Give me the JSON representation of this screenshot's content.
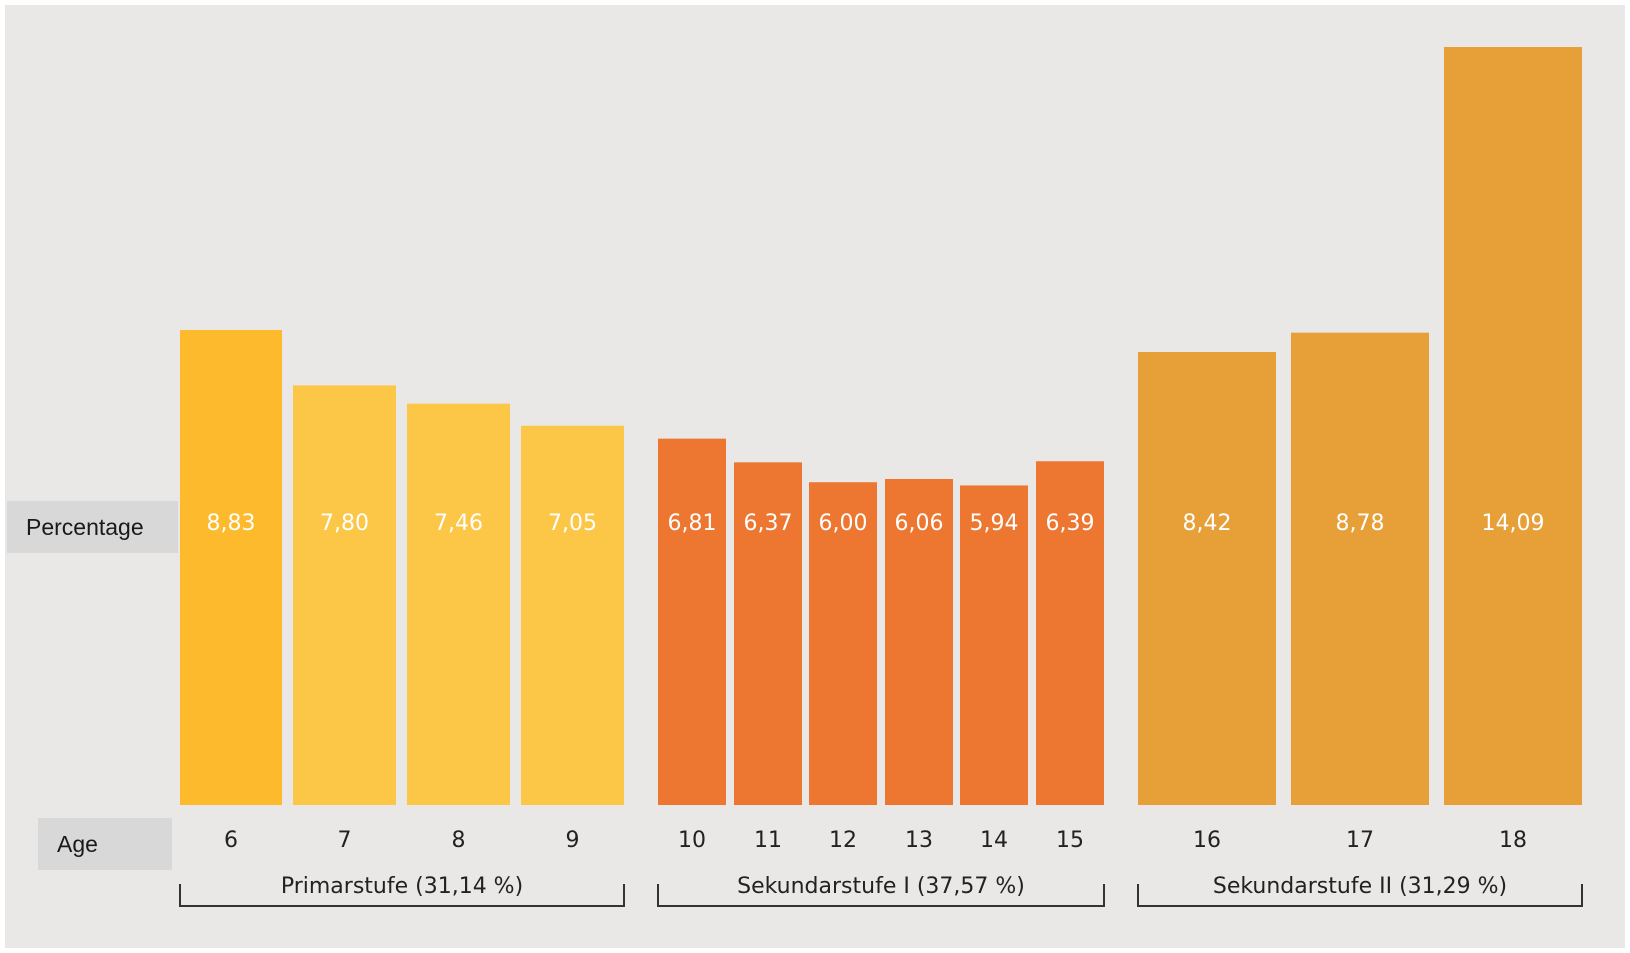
{
  "chart_data": {
    "type": "bar",
    "row_labels": {
      "value_row": "Percentage",
      "category_row": "Age"
    },
    "categories": [
      "6",
      "7",
      "8",
      "9",
      "10",
      "11",
      "12",
      "13",
      "14",
      "15",
      "16",
      "17",
      "18"
    ],
    "values": [
      8.83,
      7.8,
      7.46,
      7.05,
      6.81,
      6.37,
      6.0,
      6.06,
      5.94,
      6.39,
      8.42,
      8.78,
      14.09
    ],
    "value_labels": [
      "8,83",
      "7,80",
      "7,46",
      "7,05",
      "6,81",
      "6,37",
      "6,00",
      "6,06",
      "5,94",
      "6,39",
      "8,42",
      "8,78",
      "14,09"
    ],
    "groups": [
      {
        "label": "Primarstufe (31,14 %)",
        "start": 0,
        "end": 3
      },
      {
        "label": "Sekundarstufe I (37,57 %)",
        "start": 4,
        "end": 9
      },
      {
        "label": "Sekundarstufe II (31,29 %)",
        "start": 10,
        "end": 12
      }
    ],
    "colors": [
      "#FDBA2C",
      "#FCC647",
      "#FCC647",
      "#FCC647",
      "#ED7730",
      "#ED7730",
      "#ED7730",
      "#ED7730",
      "#ED7730",
      "#ED7730",
      "#E79F38",
      "#E79F38",
      "#E79F38"
    ],
    "ylim": [
      0,
      14.09
    ],
    "grid": false,
    "legend": "none"
  }
}
